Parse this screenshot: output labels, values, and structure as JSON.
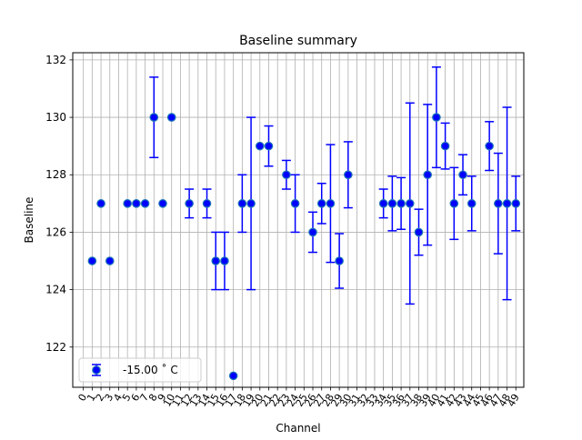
{
  "chart_data": {
    "type": "scatter",
    "title": "Baseline summary",
    "xlabel": "Channel",
    "ylabel": "Baseline",
    "xlim": [
      -1.2,
      49.9
    ],
    "ylim": [
      120.6,
      132.25
    ],
    "x_ticks": [
      0,
      1,
      2,
      3,
      4,
      5,
      6,
      7,
      8,
      9,
      10,
      11,
      12,
      13,
      14,
      15,
      16,
      17,
      18,
      19,
      20,
      21,
      22,
      23,
      24,
      25,
      26,
      27,
      28,
      29,
      30,
      31,
      32,
      33,
      34,
      35,
      36,
      37,
      38,
      39,
      40,
      41,
      42,
      43,
      44,
      45,
      46,
      47,
      48,
      49
    ],
    "y_ticks": [
      122,
      124,
      126,
      128,
      130,
      132
    ],
    "grid": true,
    "legend_placement": "lower-left",
    "series": [
      {
        "name": "-15.00 ˚ C",
        "color": "#0000ff",
        "marker_edge": "#1f77b4",
        "points": [
          {
            "x": 1,
            "y": 125,
            "err": 0
          },
          {
            "x": 2,
            "y": 127,
            "err": 0
          },
          {
            "x": 3,
            "y": 125,
            "err": 0
          },
          {
            "x": 5,
            "y": 127,
            "err": 0
          },
          {
            "x": 6,
            "y": 127,
            "err": 0
          },
          {
            "x": 7,
            "y": 127,
            "err": 0
          },
          {
            "x": 8,
            "y": 130,
            "err": 1.4
          },
          {
            "x": 9,
            "y": 127,
            "err": 0
          },
          {
            "x": 10,
            "y": 130,
            "err": 0
          },
          {
            "x": 12,
            "y": 127,
            "err": 0.5
          },
          {
            "x": 14,
            "y": 127,
            "err": 0.5
          },
          {
            "x": 15,
            "y": 125,
            "err": 1
          },
          {
            "x": 16,
            "y": 125,
            "err": 1
          },
          {
            "x": 17,
            "y": 121,
            "err": 0
          },
          {
            "x": 18,
            "y": 127,
            "err": 1
          },
          {
            "x": 19,
            "y": 127,
            "err": 3
          },
          {
            "x": 20,
            "y": 129,
            "err": 0
          },
          {
            "x": 21,
            "y": 129,
            "err": 0.7
          },
          {
            "x": 23,
            "y": 128,
            "err": 0.5
          },
          {
            "x": 24,
            "y": 127,
            "err": 1
          },
          {
            "x": 26,
            "y": 126,
            "err": 0.7
          },
          {
            "x": 27,
            "y": 127,
            "err": 0.7
          },
          {
            "x": 28,
            "y": 127,
            "err": 2.05
          },
          {
            "x": 29,
            "y": 125,
            "err": 0.95
          },
          {
            "x": 30,
            "y": 128,
            "err": 1.15
          },
          {
            "x": 34,
            "y": 127,
            "err": 0.5
          },
          {
            "x": 35,
            "y": 127,
            "err": 0.95
          },
          {
            "x": 36,
            "y": 127,
            "err": 0.9
          },
          {
            "x": 37,
            "y": 127,
            "err": 3.5
          },
          {
            "x": 38,
            "y": 126,
            "err": 0.8
          },
          {
            "x": 39,
            "y": 128,
            "err": 2.45
          },
          {
            "x": 40,
            "y": 130,
            "err": 1.75
          },
          {
            "x": 41,
            "y": 129,
            "err": 0.8
          },
          {
            "x": 42,
            "y": 127,
            "err": 1.25
          },
          {
            "x": 43,
            "y": 128,
            "err": 0.7
          },
          {
            "x": 44,
            "y": 127,
            "err": 0.95
          },
          {
            "x": 46,
            "y": 129,
            "err": 0.85
          },
          {
            "x": 47,
            "y": 127,
            "err": 1.75
          },
          {
            "x": 48,
            "y": 127,
            "err": 3.35
          },
          {
            "x": 49,
            "y": 127,
            "err": 0.95
          }
        ]
      }
    ]
  }
}
